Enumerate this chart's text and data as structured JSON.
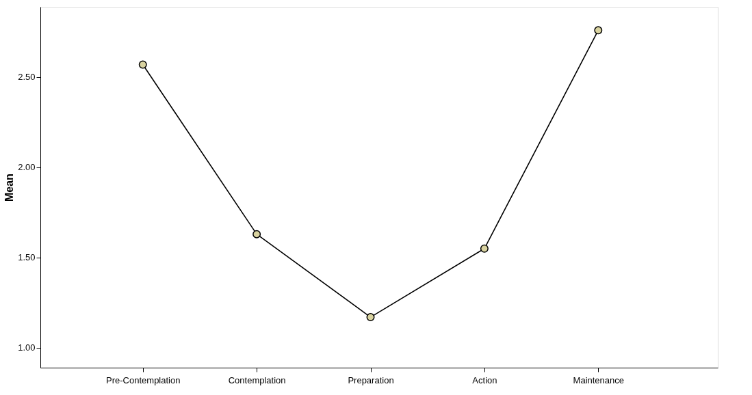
{
  "chart_data": {
    "type": "line",
    "ylabel": "Mean",
    "categories": [
      "Pre-Contemplation",
      "Contemplation",
      "Preparation",
      "Action",
      "Maintenance"
    ],
    "series": [
      {
        "color": "#000000",
        "values": [
          2.57,
          1.63,
          1.17,
          1.55,
          2.76
        ]
      }
    ],
    "ylim": [
      0.89,
      2.89
    ],
    "yticks": [
      {
        "value": 1.0,
        "label": "1.00"
      },
      {
        "value": 1.5,
        "label": "1.50"
      },
      {
        "value": 2.0,
        "label": "2.00"
      },
      {
        "value": 2.5,
        "label": "2.50"
      }
    ],
    "grid": false,
    "marker": "circle",
    "line_style": "solid"
  }
}
